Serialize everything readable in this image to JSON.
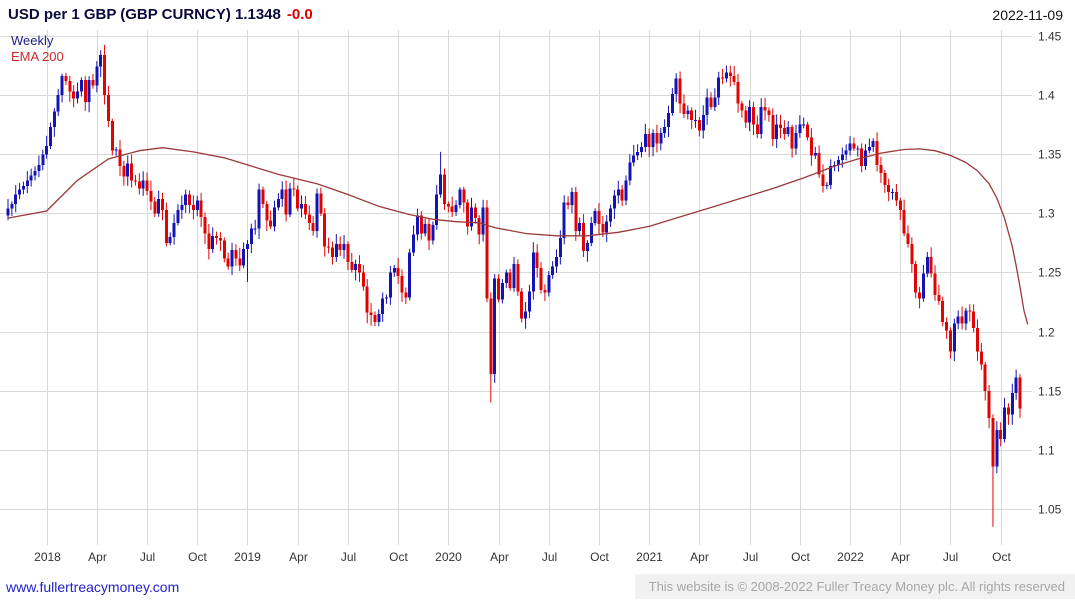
{
  "header": {
    "title": "USD per 1 GBP (GBP CURNCY) 1.1348",
    "change": "-0.0",
    "date": "2022-11-09"
  },
  "legend": {
    "timeframe": "Weekly",
    "overlay": "EMA 200"
  },
  "footer": {
    "link": "www.fullertreacymoney.com",
    "copyright": "This website is © 2008-2022 Fuller Treacy Money plc. All rights reserved"
  },
  "colors": {
    "up": "#1414b4",
    "down": "#e00505",
    "ema": "#9a3a3a",
    "grid": "#d9d9d9",
    "axis_text": "#333333"
  },
  "chart_data": {
    "type": "candlestick",
    "title": "USD per 1 GBP (GBP CURNCY)",
    "timeframe": "Weekly",
    "overlay": "EMA 200",
    "last_price": 1.1348,
    "change": "-0.0",
    "ylim": [
      1.03,
      1.45
    ],
    "grid": true,
    "y_ticks": [
      "1.45",
      "1.4",
      "1.35",
      "1.3",
      "1.25",
      "1.2",
      "1.15",
      "1.1",
      "1.05"
    ],
    "x_ticks": [
      {
        "label": "2018",
        "week": 10
      },
      {
        "label": "Apr",
        "week": 23
      },
      {
        "label": "Jul",
        "week": 36
      },
      {
        "label": "Oct",
        "week": 49
      },
      {
        "label": "2019",
        "week": 62
      },
      {
        "label": "Apr",
        "week": 75
      },
      {
        "label": "Jul",
        "week": 88
      },
      {
        "label": "Oct",
        "week": 101
      },
      {
        "label": "2020",
        "week": 114
      },
      {
        "label": "Apr",
        "week": 127
      },
      {
        "label": "Jul",
        "week": 140
      },
      {
        "label": "Oct",
        "week": 153
      },
      {
        "label": "2021",
        "week": 166
      },
      {
        "label": "Apr",
        "week": 179
      },
      {
        "label": "Jul",
        "week": 192
      },
      {
        "label": "Oct",
        "week": 205
      },
      {
        "label": "2022",
        "week": 218
      },
      {
        "label": "Apr",
        "week": 231
      },
      {
        "label": "Jul",
        "week": 244
      },
      {
        "label": "Oct",
        "week": 257
      }
    ],
    "weekly_closes": [
      1.304,
      1.308,
      1.316,
      1.32,
      1.323,
      1.328,
      1.332,
      1.336,
      1.341,
      1.35,
      1.357,
      1.373,
      1.386,
      1.4,
      1.416,
      1.412,
      1.403,
      1.397,
      1.403,
      1.413,
      1.394,
      1.413,
      1.408,
      1.424,
      1.434,
      1.4,
      1.378,
      1.353,
      1.354,
      1.34,
      1.331,
      1.342,
      1.328,
      1.327,
      1.321,
      1.328,
      1.319,
      1.31,
      1.3,
      1.312,
      1.303,
      1.275,
      1.28,
      1.292,
      1.303,
      1.307,
      1.316,
      1.307,
      1.303,
      1.311,
      1.297,
      1.283,
      1.27,
      1.281,
      1.279,
      1.277,
      1.262,
      1.255,
      1.269,
      1.262,
      1.256,
      1.27,
      1.274,
      1.287,
      1.287,
      1.32,
      1.308,
      1.294,
      1.289,
      1.305,
      1.312,
      1.32,
      1.299,
      1.321,
      1.32,
      1.304,
      1.308,
      1.299,
      1.292,
      1.285,
      1.317,
      1.3,
      1.272,
      1.271,
      1.263,
      1.274,
      1.269,
      1.274,
      1.259,
      1.252,
      1.257,
      1.25,
      1.238,
      1.216,
      1.214,
      1.208,
      1.215,
      1.228,
      1.229,
      1.25,
      1.254,
      1.247,
      1.233,
      1.229,
      1.267,
      1.282,
      1.298,
      1.283,
      1.291,
      1.277,
      1.29,
      1.316,
      1.333,
      1.308,
      1.306,
      1.301,
      1.307,
      1.32,
      1.309,
      1.289,
      1.305,
      1.296,
      1.282,
      1.305,
      1.228,
      1.164,
      1.245,
      1.227,
      1.241,
      1.25,
      1.237,
      1.257,
      1.234,
      1.211,
      1.217,
      1.234,
      1.267,
      1.254,
      1.235,
      1.233,
      1.248,
      1.255,
      1.263,
      1.279,
      1.309,
      1.307,
      1.318,
      1.285,
      1.292,
      1.268,
      1.275,
      1.292,
      1.302,
      1.291,
      1.284,
      1.293,
      1.304,
      1.315,
      1.32,
      1.311,
      1.328,
      1.343,
      1.349,
      1.352,
      1.356,
      1.367,
      1.356,
      1.368,
      1.359,
      1.368,
      1.373,
      1.385,
      1.401,
      1.414,
      1.393,
      1.384,
      1.387,
      1.379,
      1.379,
      1.37,
      1.383,
      1.398,
      1.39,
      1.398,
      1.415,
      1.414,
      1.419,
      1.416,
      1.411,
      1.393,
      1.387,
      1.377,
      1.39,
      1.375,
      1.367,
      1.39,
      1.387,
      1.383,
      1.363,
      1.375,
      1.372,
      1.367,
      1.373,
      1.355,
      1.368,
      1.375,
      1.375,
      1.364,
      1.349,
      1.351,
      1.333,
      1.323,
      1.324,
      1.34,
      1.341,
      1.345,
      1.35,
      1.353,
      1.359,
      1.355,
      1.355,
      1.34,
      1.353,
      1.356,
      1.361,
      1.341,
      1.334,
      1.324,
      1.318,
      1.318,
      1.311,
      1.303,
      1.283,
      1.274,
      1.257,
      1.233,
      1.228,
      1.249,
      1.263,
      1.249,
      1.231,
      1.226,
      1.208,
      1.201,
      1.183,
      1.207,
      1.213,
      1.207,
      1.218,
      1.217,
      1.203,
      1.183,
      1.172,
      1.15,
      1.127,
      1.086,
      1.117,
      1.109,
      1.136,
      1.13,
      1.148,
      1.161,
      1.1348
    ],
    "wick_overrides": {
      "24": {
        "high": 1.438
      },
      "62": {
        "low": 1.242
      },
      "112": {
        "high": 1.352
      },
      "125": {
        "low": 1.14
      },
      "186": {
        "high": 1.425
      },
      "255": {
        "low": 1.035
      }
    },
    "ema200": [
      [
        0,
        1.296
      ],
      [
        10,
        1.302
      ],
      [
        18,
        1.328
      ],
      [
        26,
        1.346
      ],
      [
        34,
        1.353
      ],
      [
        40,
        1.3555
      ],
      [
        48,
        1.352
      ],
      [
        56,
        1.347
      ],
      [
        62,
        1.341
      ],
      [
        70,
        1.333
      ],
      [
        80,
        1.325
      ],
      [
        88,
        1.316
      ],
      [
        96,
        1.306
      ],
      [
        104,
        1.299
      ],
      [
        110,
        1.295
      ],
      [
        116,
        1.293
      ],
      [
        122,
        1.292
      ],
      [
        126,
        1.288
      ],
      [
        134,
        1.283
      ],
      [
        142,
        1.281
      ],
      [
        150,
        1.281
      ],
      [
        158,
        1.284
      ],
      [
        166,
        1.289
      ],
      [
        174,
        1.297
      ],
      [
        182,
        1.305
      ],
      [
        190,
        1.313
      ],
      [
        198,
        1.321
      ],
      [
        206,
        1.33
      ],
      [
        214,
        1.34
      ],
      [
        220,
        1.346
      ],
      [
        226,
        1.351
      ],
      [
        232,
        1.354
      ],
      [
        236,
        1.3545
      ],
      [
        240,
        1.353
      ],
      [
        244,
        1.349
      ],
      [
        248,
        1.343
      ],
      [
        251,
        1.336
      ],
      [
        254,
        1.325
      ],
      [
        256,
        1.313
      ],
      [
        258,
        1.296
      ],
      [
        260,
        1.272
      ],
      [
        261,
        1.256
      ],
      [
        262,
        1.238
      ],
      [
        263,
        1.218
      ],
      [
        264,
        1.206
      ]
    ]
  }
}
